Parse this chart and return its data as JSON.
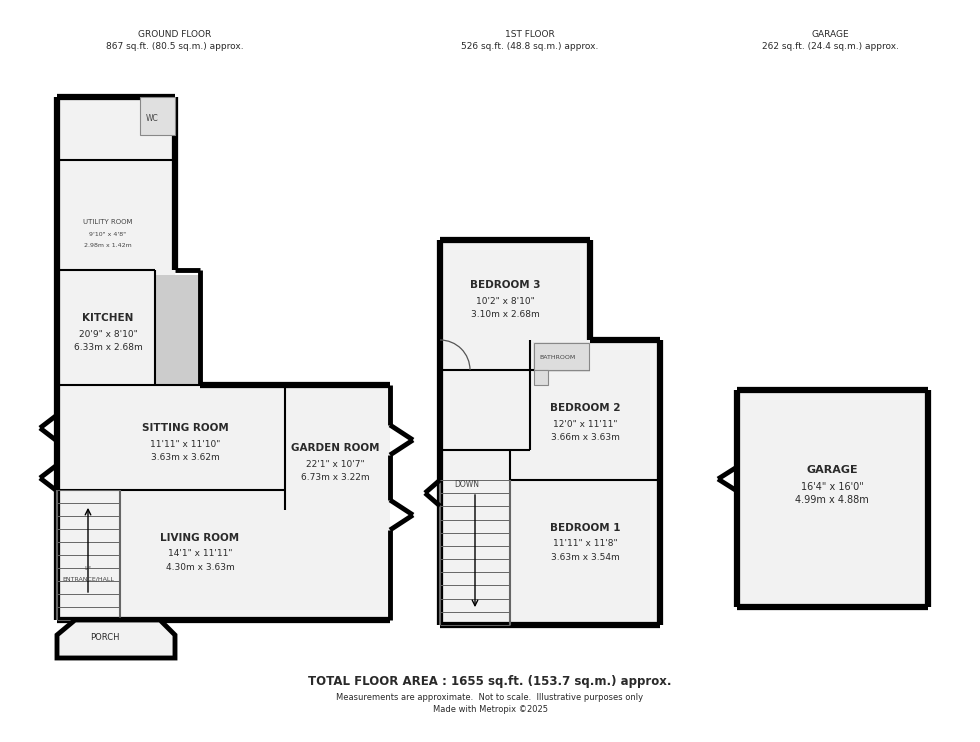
{
  "bg_color": "#ffffff",
  "wall_color": "#000000",
  "wall_lw": 3.5,
  "thin_lw": 1.5,
  "fill_color": "#f2f2f2",
  "gray_fill": "#cccccc",
  "title_text": "GROUND FLOOR\n867 sq.ft. (80.5 sq.m.) approx.",
  "title2_text": "1ST FLOOR\n526 sq.ft. (48.8 sq.m.) approx.",
  "title3_text": "GARAGE\n262 sq.ft. (24.4 sq.m.) approx.",
  "footer1": "TOTAL FLOOR AREA : 1655 sq.ft. (153.7 sq.m.) approx.",
  "footer2": "Measurements are approximate.  Not to scale.  Illustrative purposes only",
  "footer3": "Made with Metropix ©2025"
}
